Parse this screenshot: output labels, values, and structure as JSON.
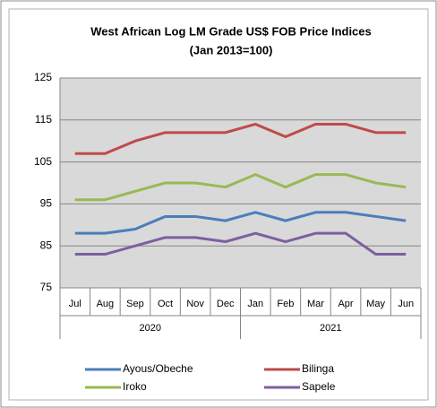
{
  "chart_data": {
    "type": "line",
    "title": "West African Log LM Grade US$ FOB Price Indices",
    "subtitle": "(Jan 2013=100)",
    "categories": [
      "Jul",
      "Aug",
      "Sep",
      "Oct",
      "Nov",
      "Dec",
      "Jan",
      "Feb",
      "Mar",
      "Apr",
      "May",
      "Jun"
    ],
    "category_groups": [
      {
        "label": "2020",
        "count": 6
      },
      {
        "label": "2021",
        "count": 6
      }
    ],
    "series": [
      {
        "name": "Ayous/Obeche",
        "color": "#4a7ebb",
        "values": [
          88,
          88,
          89,
          92,
          92,
          91,
          93,
          91,
          93,
          93,
          92,
          91
        ]
      },
      {
        "name": "Bilinga",
        "color": "#be4b48",
        "values": [
          107,
          107,
          110,
          112,
          112,
          112,
          114,
          111,
          114,
          114,
          112,
          112
        ]
      },
      {
        "name": "Iroko",
        "color": "#98b954",
        "values": [
          96,
          96,
          98,
          100,
          100,
          99,
          102,
          99,
          102,
          102,
          100,
          99
        ]
      },
      {
        "name": "Sapele",
        "color": "#7d5fa0",
        "values": [
          83,
          83,
          85,
          87,
          87,
          86,
          88,
          86,
          88,
          88,
          83,
          83
        ]
      }
    ],
    "ylim": [
      75,
      125
    ],
    "yticks": [
      75,
      85,
      95,
      105,
      115,
      125
    ],
    "grid": true,
    "legend": "bottom"
  }
}
